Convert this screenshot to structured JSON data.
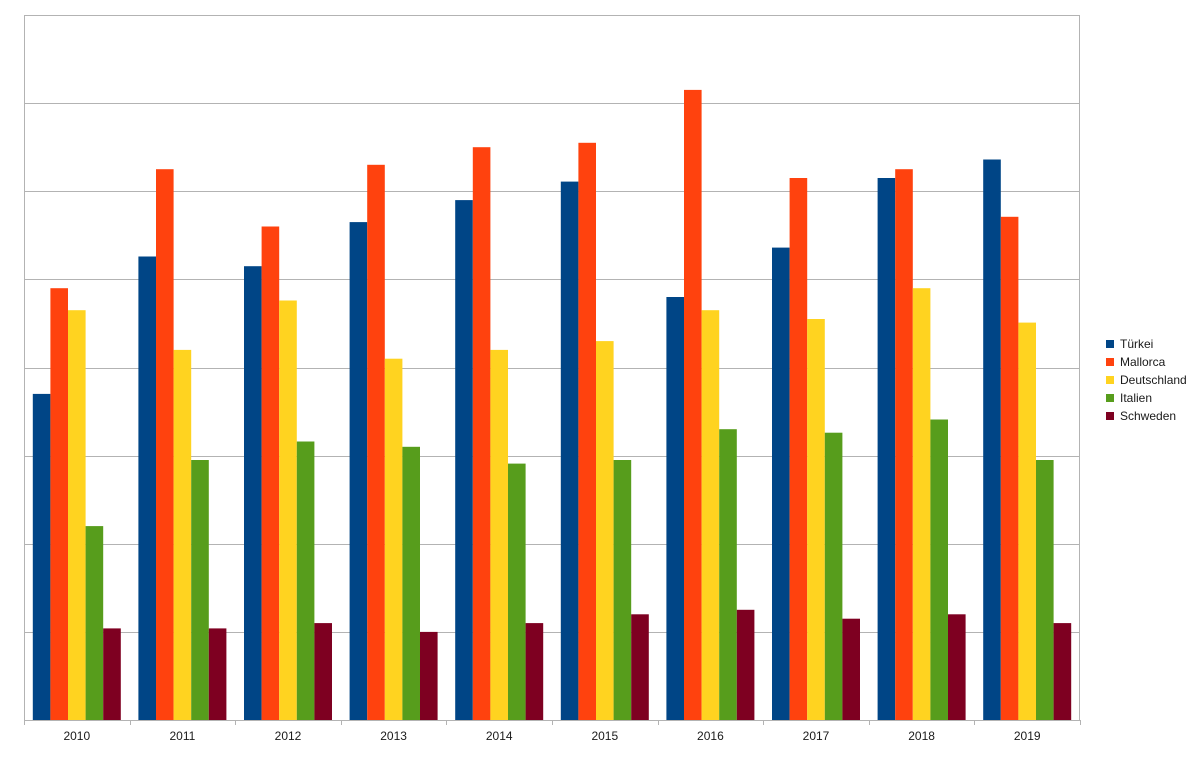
{
  "chart_data": {
    "type": "bar",
    "title": "",
    "xlabel": "",
    "ylabel": "",
    "ylim": [
      0,
      8
    ],
    "y_tick_labels_visible": false,
    "grid": true,
    "legend_position": "right",
    "categories": [
      "2010",
      "2011",
      "2012",
      "2013",
      "2014",
      "2015",
      "2016",
      "2017",
      "2018",
      "2019"
    ],
    "series": [
      {
        "name": "Türkei",
        "color": "#004586",
        "values": [
          3.7,
          5.26,
          5.15,
          5.65,
          5.9,
          6.11,
          4.8,
          5.36,
          6.15,
          6.36
        ]
      },
      {
        "name": "Mallorca",
        "color": "#ff420e",
        "values": [
          4.9,
          6.25,
          5.6,
          6.3,
          6.5,
          6.55,
          7.15,
          6.15,
          6.25,
          5.71
        ]
      },
      {
        "name": "Deutschland",
        "color": "#ffd320",
        "values": [
          4.65,
          4.2,
          4.76,
          4.1,
          4.2,
          4.3,
          4.65,
          4.55,
          4.9,
          4.51
        ]
      },
      {
        "name": "Italien",
        "color": "#579d1c",
        "values": [
          2.2,
          2.95,
          3.16,
          3.1,
          2.91,
          2.95,
          3.3,
          3.26,
          3.41,
          2.95
        ]
      },
      {
        "name": "Schweden",
        "color": "#7e0021",
        "values": [
          1.04,
          1.04,
          1.1,
          1.0,
          1.1,
          1.2,
          1.25,
          1.15,
          1.2,
          1.1
        ]
      }
    ]
  },
  "legend": {
    "items": [
      {
        "label": "Türkei",
        "color": "#004586"
      },
      {
        "label": "Mallorca",
        "color": "#ff420e"
      },
      {
        "label": "Deutschland",
        "color": "#ffd320"
      },
      {
        "label": "Italien",
        "color": "#579d1c"
      },
      {
        "label": "Schweden",
        "color": "#7e0021"
      }
    ]
  }
}
